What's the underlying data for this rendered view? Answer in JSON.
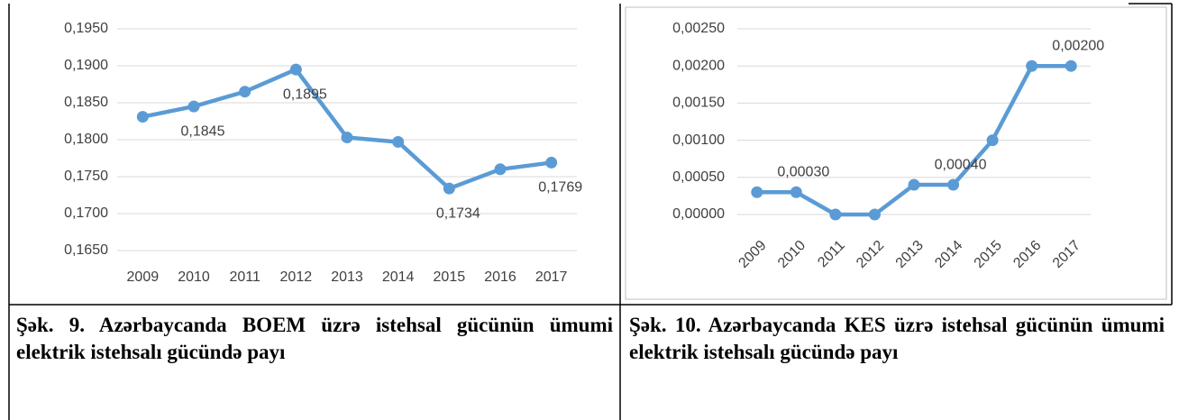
{
  "chart_data": [
    {
      "type": "line",
      "categories": [
        "2009",
        "2010",
        "2011",
        "2012",
        "2013",
        "2014",
        "2015",
        "2016",
        "2017"
      ],
      "series": [
        {
          "color": "#5b9bd5",
          "values": [
            0.1831,
            0.1845,
            0.1865,
            0.1895,
            0.1803,
            0.1797,
            0.1734,
            0.176,
            0.1769
          ],
          "value_labels": [
            null,
            "0,1845",
            null,
            "0,1895",
            null,
            null,
            "0,1734",
            null,
            "0,1769"
          ]
        }
      ],
      "ylim": [
        0.165,
        0.195
      ],
      "yticks": [
        {
          "value": 0.165,
          "label": "0,1650"
        },
        {
          "value": 0.17,
          "label": "0,1700"
        },
        {
          "value": 0.175,
          "label": "0,1750"
        },
        {
          "value": 0.18,
          "label": "0,1800"
        },
        {
          "value": 0.185,
          "label": "0,1850"
        },
        {
          "value": 0.19,
          "label": "0,1900"
        },
        {
          "value": 0.195,
          "label": "0,1950"
        }
      ],
      "grid": true
    },
    {
      "type": "line",
      "categories": [
        "2009",
        "2010",
        "2011",
        "2012",
        "2013",
        "2014",
        "2015",
        "2016",
        "2017"
      ],
      "series": [
        {
          "color": "#5b9bd5",
          "values": [
            0.0003,
            0.0003,
            0,
            0,
            0.0004,
            0.0004,
            0.001,
            0.002,
            0.002
          ],
          "value_labels": [
            null,
            "0,00030",
            null,
            null,
            null,
            "0,00040",
            null,
            null,
            "0,00200"
          ]
        }
      ],
      "ylim": [
        0,
        0.0025
      ],
      "yticks": [
        {
          "value": 0,
          "label": "0,00000"
        },
        {
          "value": 0.0005,
          "label": "0,00050"
        },
        {
          "value": 0.001,
          "label": "0,00100"
        },
        {
          "value": 0.0015,
          "label": "0,00150"
        },
        {
          "value": 0.002,
          "label": "0,00200"
        },
        {
          "value": 0.0025,
          "label": "0,00250"
        }
      ],
      "grid": true,
      "rotated_x_labels": true
    }
  ],
  "captions": [
    "Şək. 9. Azərbaycanda BOEM üzrə istehsal gücünün ümumi elektrik istehsalı gücündə payı",
    "Şək. 10. Azərbaycanda KES üzrə istehsal gücünün ümumi elektrik istehsalı gücündə payı"
  ]
}
